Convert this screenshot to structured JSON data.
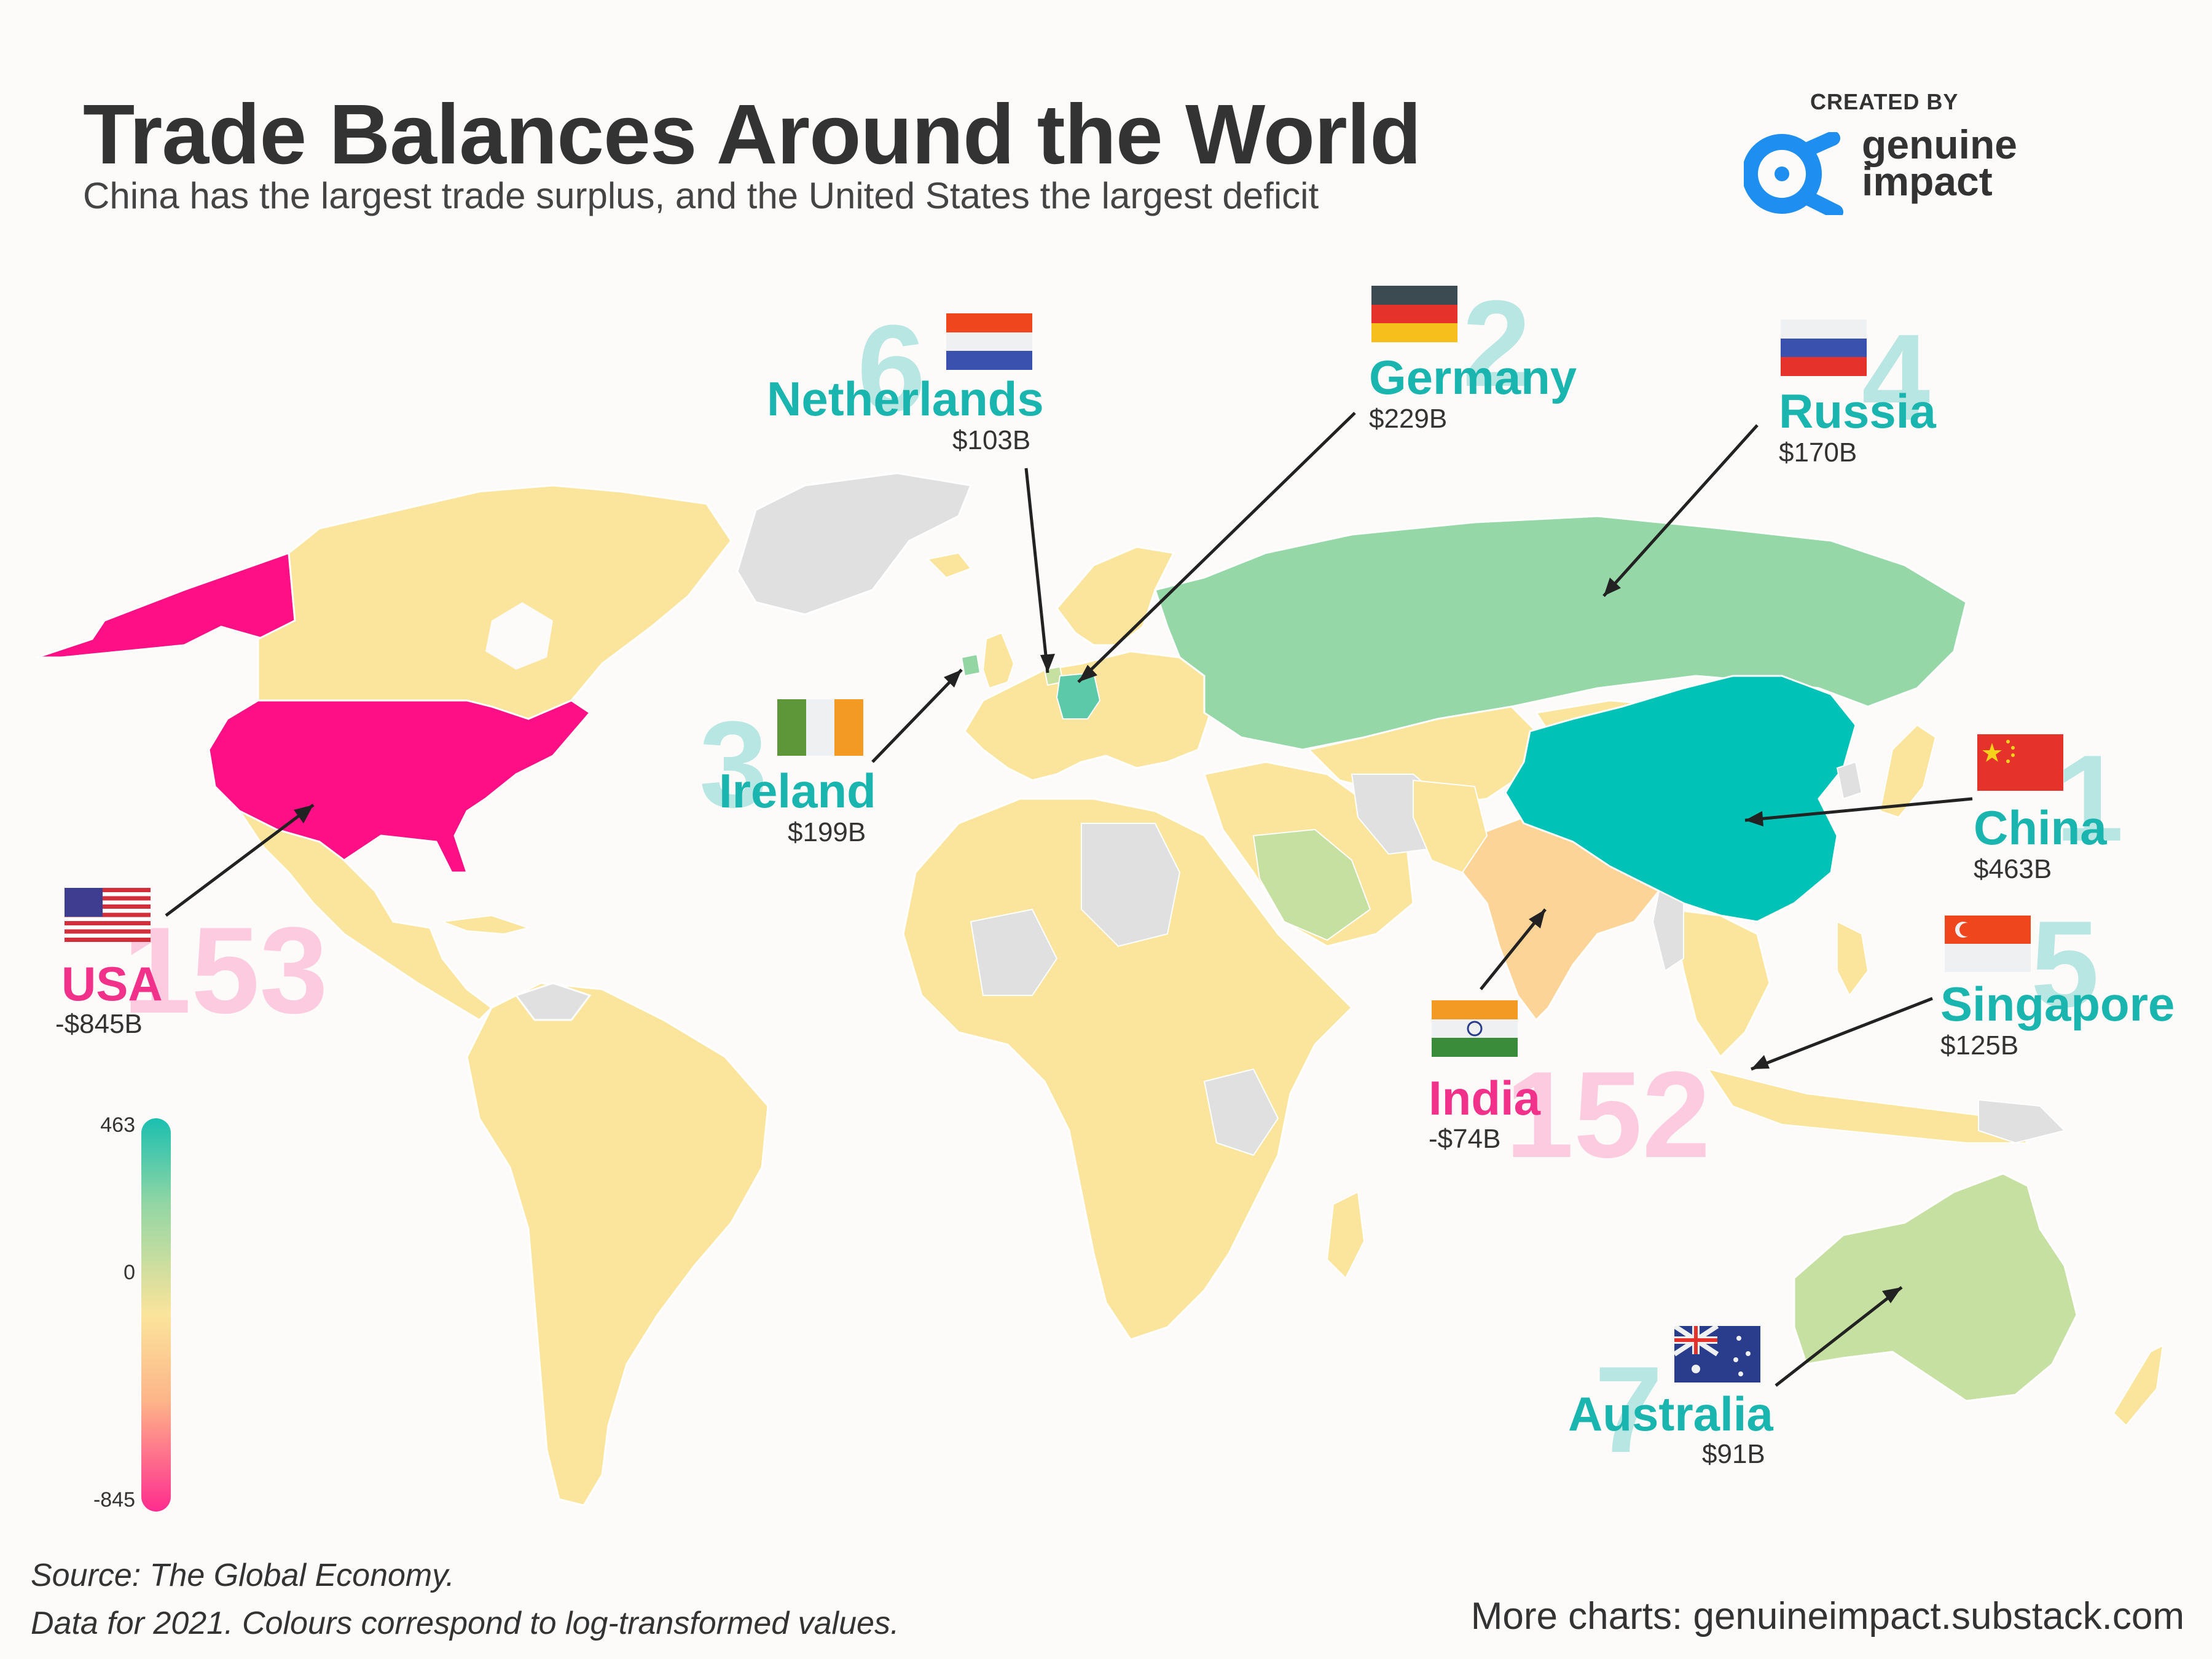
{
  "title": "Trade Balances Around the World",
  "subtitle": "China has the largest trade surplus, and the United States the largest deficit",
  "brand": {
    "created_by": "CREATED BY",
    "name_line1": "genuine",
    "name_line2": "impact",
    "color": "#1e8ff0"
  },
  "source_line1": "Source: The Global Economy.",
  "source_line2": "Data for 2021. Colours correspond to log-transformed values.",
  "more_charts": "More charts: genuineimpact.substack.com",
  "legend": {
    "max": "463",
    "mid": "0",
    "min": "-845"
  },
  "colors": {
    "surplus_text": "#1bb5b0",
    "deficit_text": "#f2318a",
    "china": "#00c2b7",
    "germany": "#5ccaa9",
    "russia": "#95d7a7",
    "australia": "#c5e0a0",
    "usa": "#ff0f85",
    "india": "#fdd497",
    "neutral": "#fbe49b",
    "no_data": "#e0e0e0"
  },
  "callouts": [
    {
      "id": "china",
      "rank": "1",
      "name": "China",
      "value": "$463B",
      "flag": "china-flag"
    },
    {
      "id": "germany",
      "rank": "2",
      "name": "Germany",
      "value": "$229B",
      "flag": "germany-flag"
    },
    {
      "id": "ireland",
      "rank": "3",
      "name": "Ireland",
      "value": "$199B",
      "flag": "ireland-flag"
    },
    {
      "id": "russia",
      "rank": "4",
      "name": "Russia",
      "value": "$170B",
      "flag": "russia-flag"
    },
    {
      "id": "singapore",
      "rank": "5",
      "name": "Singapore",
      "value": "$125B",
      "flag": "singapore-flag"
    },
    {
      "id": "netherlands",
      "rank": "6",
      "name": "Netherlands",
      "value": "$103B",
      "flag": "netherlands-flag"
    },
    {
      "id": "australia",
      "rank": "7",
      "name": "Australia",
      "value": "$91B",
      "flag": "australia-flag"
    },
    {
      "id": "india",
      "rank": "152",
      "name": "India",
      "value": "-$74B",
      "flag": "india-flag"
    },
    {
      "id": "usa",
      "rank": "153",
      "name": "USA",
      "value": "-$845B",
      "flag": "usa-flag"
    }
  ]
}
